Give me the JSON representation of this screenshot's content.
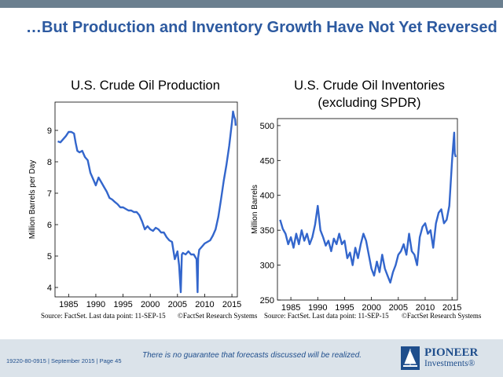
{
  "slide": {
    "title": "…But Production and Inventory Growth Have Not Yet Reversed",
    "disclaimer": "There is no guarantee that forecasts discussed will be realized.",
    "footer_ref": "19220-80-0915 | September 2015 | Page 45",
    "logo_name": "PIONEER",
    "logo_sub": "Investments®"
  },
  "chart_data": [
    {
      "type": "line",
      "title": "U.S. Crude Oil Production",
      "xlabel": "",
      "ylabel": "Million Barrels per Day",
      "xlim": [
        1982.5,
        2016
      ],
      "ylim": [
        3.7,
        9.9
      ],
      "xticks": [
        1985,
        1990,
        1995,
        2000,
        2005,
        2010,
        2015
      ],
      "yticks": [
        4,
        5,
        6,
        7,
        8,
        9
      ],
      "grid": false,
      "source": "Source: FactSet. Last data point: 11-SEP-15",
      "copyright": "©FactSet Research Systems",
      "color": "#3366cc",
      "series": [
        {
          "x": [
            1983.0,
            1983.5,
            1984.0,
            1984.5,
            1985.0,
            1985.5,
            1986.0,
            1986.3,
            1986.6,
            1987.0,
            1987.5,
            1988.0,
            1988.5,
            1989.0,
            1989.5,
            1990.0,
            1990.5,
            1991.0,
            1991.5,
            1992.0,
            1992.5,
            1993.0,
            1993.5,
            1994.0,
            1994.5,
            1995.0,
            1995.5,
            1996.0,
            1996.5,
            1997.0,
            1997.5,
            1998.0,
            1998.5,
            1999.0,
            1999.5,
            2000.0,
            2000.5,
            2001.0,
            2001.5,
            2002.0,
            2002.5,
            2003.0,
            2003.5,
            2004.0,
            2004.5,
            2005.0,
            2005.3,
            2005.6,
            2005.8,
            2006.0,
            2006.5,
            2007.0,
            2007.5,
            2008.0,
            2008.5,
            2008.7,
            2008.8,
            2009.0,
            2009.5,
            2010.0,
            2010.5,
            2011.0,
            2011.5,
            2012.0,
            2012.5,
            2013.0,
            2013.5,
            2014.0,
            2014.5,
            2015.0,
            2015.2,
            2015.4,
            2015.6,
            2015.7
          ],
          "y": [
            8.65,
            8.62,
            8.72,
            8.82,
            8.95,
            8.95,
            8.9,
            8.6,
            8.35,
            8.3,
            8.35,
            8.15,
            8.05,
            7.65,
            7.45,
            7.25,
            7.5,
            7.35,
            7.2,
            7.05,
            6.85,
            6.8,
            6.72,
            6.65,
            6.55,
            6.55,
            6.5,
            6.45,
            6.45,
            6.4,
            6.4,
            6.3,
            6.1,
            5.85,
            5.95,
            5.85,
            5.8,
            5.9,
            5.85,
            5.75,
            5.75,
            5.6,
            5.5,
            5.45,
            4.9,
            5.15,
            4.7,
            3.85,
            5.05,
            5.1,
            5.05,
            5.15,
            5.05,
            5.05,
            4.9,
            3.85,
            4.95,
            5.2,
            5.3,
            5.4,
            5.45,
            5.5,
            5.65,
            5.85,
            6.25,
            6.8,
            7.4,
            7.9,
            8.5,
            9.25,
            9.6,
            9.45,
            9.35,
            9.15
          ]
        }
      ]
    },
    {
      "type": "line",
      "title": "U.S. Crude Oil Inventories (excluding SPDR)",
      "title_line1": "U.S. Crude Oil Inventories",
      "title_line2": "(excluding SPDR)",
      "xlabel": "",
      "ylabel": "Million Barrels",
      "xlim": [
        1982.5,
        2016
      ],
      "ylim": [
        250,
        510
      ],
      "xticks": [
        1985,
        1990,
        1995,
        2000,
        2005,
        2010,
        2015
      ],
      "yticks": [
        250,
        300,
        350,
        400,
        450,
        500
      ],
      "grid": false,
      "source": "Source: FactSet. Last data point: 11-SEP-15",
      "copyright": "©FactSet Research Systems",
      "color": "#3366cc",
      "series": [
        {
          "x": [
            1983.0,
            1983.5,
            1984.0,
            1984.5,
            1985.0,
            1985.5,
            1986.0,
            1986.5,
            1987.0,
            1987.5,
            1988.0,
            1988.5,
            1989.0,
            1989.5,
            1990.0,
            1990.5,
            1991.0,
            1991.5,
            1992.0,
            1992.5,
            1993.0,
            1993.5,
            1994.0,
            1994.5,
            1995.0,
            1995.5,
            1996.0,
            1996.5,
            1997.0,
            1997.5,
            1998.0,
            1998.5,
            1999.0,
            1999.5,
            2000.0,
            2000.5,
            2001.0,
            2001.5,
            2002.0,
            2002.5,
            2003.0,
            2003.5,
            2004.0,
            2004.5,
            2005.0,
            2005.5,
            2006.0,
            2006.5,
            2007.0,
            2007.5,
            2008.0,
            2008.5,
            2009.0,
            2009.5,
            2010.0,
            2010.5,
            2011.0,
            2011.5,
            2012.0,
            2012.5,
            2013.0,
            2013.5,
            2014.0,
            2014.5,
            2015.0,
            2015.2,
            2015.4,
            2015.5,
            2015.7
          ],
          "y": [
            365,
            352,
            345,
            330,
            340,
            325,
            345,
            330,
            350,
            335,
            345,
            330,
            340,
            358,
            385,
            350,
            340,
            328,
            335,
            320,
            338,
            330,
            345,
            330,
            335,
            310,
            318,
            300,
            325,
            310,
            330,
            345,
            335,
            315,
            295,
            285,
            305,
            290,
            315,
            295,
            285,
            275,
            290,
            300,
            315,
            320,
            330,
            315,
            345,
            320,
            315,
            300,
            340,
            355,
            360,
            345,
            350,
            325,
            360,
            375,
            380,
            360,
            365,
            385,
            450,
            470,
            490,
            460,
            455
          ]
        }
      ]
    }
  ]
}
